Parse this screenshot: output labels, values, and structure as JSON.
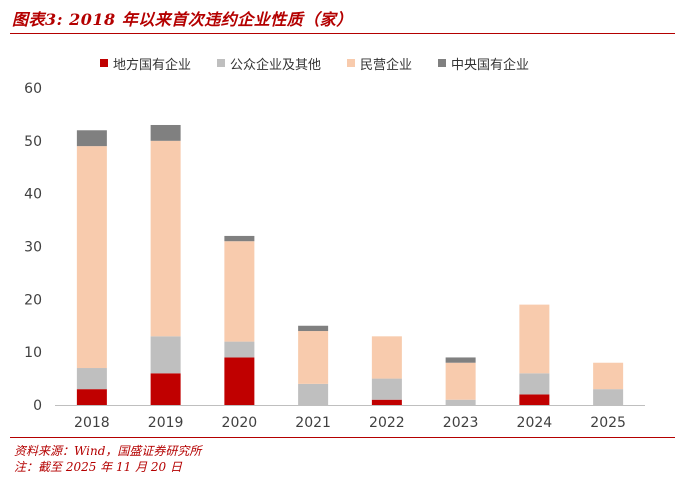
{
  "title": "图表3: 2018 年以来首次违约企业性质（家）",
  "footer": {
    "source": "资料来源：Wind，国盛证券研究所",
    "note": "注：截至 2025 年 11 月 20 日"
  },
  "colors": {
    "brand": "#b40000",
    "axis": "#bfbfbf",
    "text": "#404040"
  },
  "chart_data": {
    "type": "bar",
    "stacked": true,
    "categories": [
      "2018",
      "2019",
      "2020",
      "2021",
      "2022",
      "2023",
      "2024",
      "2025"
    ],
    "series": [
      {
        "name": "地方国有企业",
        "color": "#c00000",
        "values": [
          3,
          6,
          9,
          0,
          1,
          0,
          2,
          0
        ]
      },
      {
        "name": "公众企业及其他",
        "color": "#bfbfbf",
        "values": [
          4,
          7,
          3,
          4,
          4,
          1,
          4,
          3
        ]
      },
      {
        "name": "民营企业",
        "color": "#f8cbad",
        "values": [
          42,
          37,
          19,
          10,
          8,
          7,
          13,
          5
        ]
      },
      {
        "name": "中央国有企业",
        "color": "#808080",
        "values": [
          3,
          3,
          1,
          1,
          0,
          1,
          0,
          0
        ]
      }
    ],
    "ylim": [
      0,
      60
    ],
    "yticks": [
      0,
      10,
      20,
      30,
      40,
      50,
      60
    ],
    "xlabel": "",
    "ylabel": "",
    "legend_position": "top",
    "grid": false
  }
}
